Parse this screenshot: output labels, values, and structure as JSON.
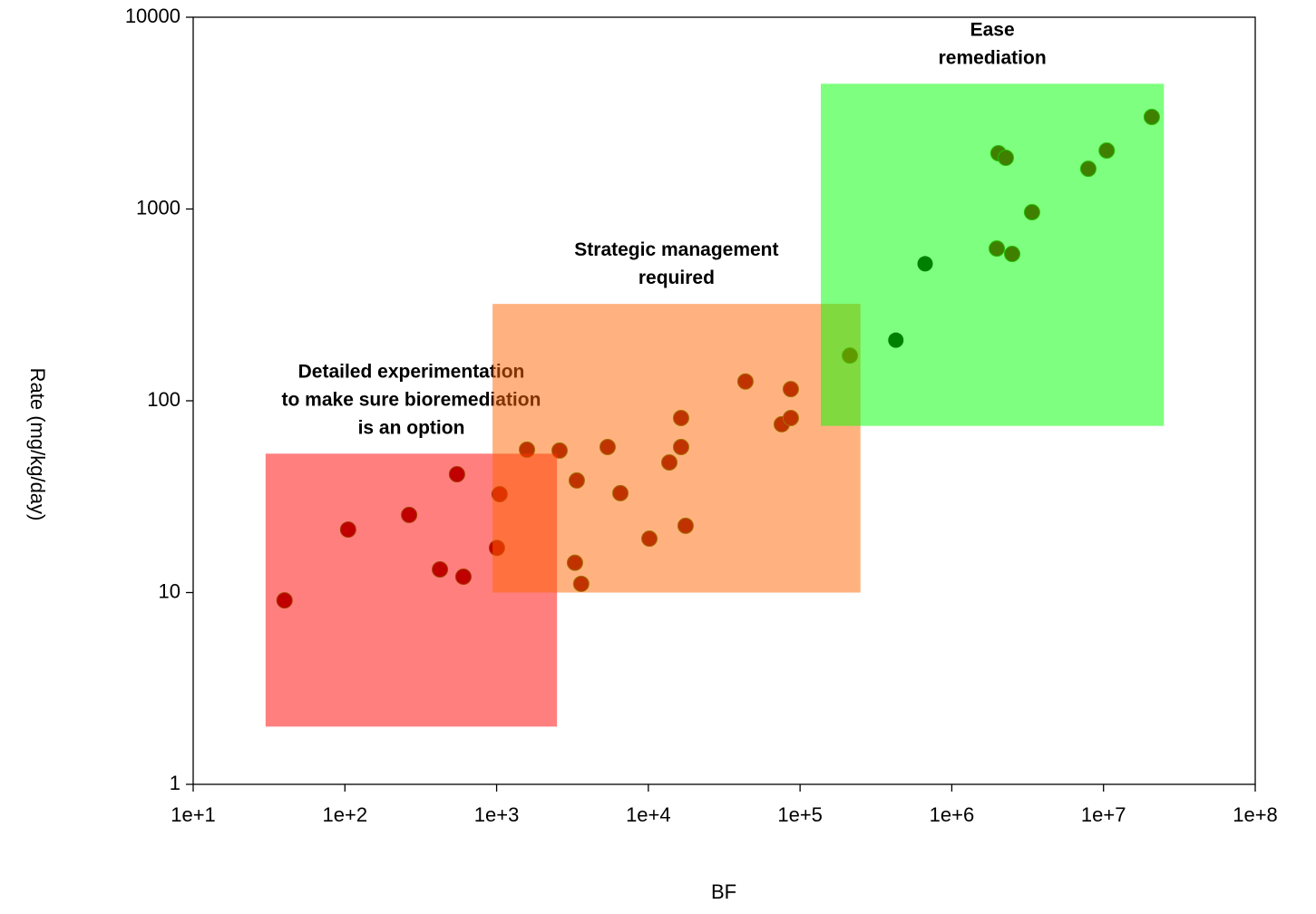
{
  "chart_data": {
    "type": "scatter",
    "xlabel": "BF",
    "ylabel": "Rate (mg/kg/day)",
    "xscale": "log",
    "yscale": "log",
    "xlim": [
      10,
      100000000
    ],
    "ylim": [
      1,
      10000
    ],
    "xticks": [
      {
        "value": 10,
        "label": "1e+1"
      },
      {
        "value": 100,
        "label": "1e+2"
      },
      {
        "value": 1000,
        "label": "1e+3"
      },
      {
        "value": 10000,
        "label": "1e+4"
      },
      {
        "value": 100000,
        "label": "1e+5"
      },
      {
        "value": 1000000,
        "label": "1e+6"
      },
      {
        "value": 10000000,
        "label": "1e+7"
      },
      {
        "value": 100000000,
        "label": "1e+8"
      }
    ],
    "yticks": [
      1,
      10,
      100,
      1000,
      10000
    ],
    "series": [
      {
        "color": "#800000",
        "x": [
          40,
          105,
          265,
          423,
          548,
          604,
          1005,
          1047,
          1585,
          2600,
          3375,
          3283,
          3610,
          5390,
          6540,
          10160,
          13750,
          16430,
          16430,
          17600,
          43650,
          75700,
          86900,
          86900,
          213000,
          1980000,
          2500000,
          2030000,
          2270000,
          3380000,
          7940000,
          10500000,
          20800000
        ],
        "values": [
          9.1,
          21.3,
          25.4,
          13.2,
          41.4,
          12.1,
          17.1,
          32.6,
          55.6,
          55,
          38.4,
          14.3,
          11.1,
          57.4,
          33,
          19.1,
          47.7,
          81.3,
          57.4,
          22.3,
          126,
          75.4,
          115,
          81.3,
          172,
          622,
          583,
          1954,
          1849,
          962,
          1622,
          2018,
          3020
        ]
      },
      {
        "color": "#008000",
        "x": [
          428000,
          667000
        ],
        "values": [
          207,
          518
        ]
      }
    ],
    "regions": [
      {
        "label": "Detailed experimentation\nto make sure bioremediation\nis an option",
        "color": "#ff0000",
        "text_color": "#c00000",
        "xlim": [
          30,
          2500
        ],
        "ylim": [
          2,
          53
        ]
      },
      {
        "label": "Strategic management\nrequired",
        "color": "#ff6600",
        "text_color": "#ed7d31",
        "xlim": [
          940,
          250000
        ],
        "ylim": [
          10,
          320
        ]
      },
      {
        "label": "Ease\nremediation",
        "color": "#00ff00",
        "text_color": "#4ea72e",
        "xlim": [
          137000,
          25000000
        ],
        "ylim": [
          74,
          4500
        ]
      }
    ],
    "grid": false
  }
}
